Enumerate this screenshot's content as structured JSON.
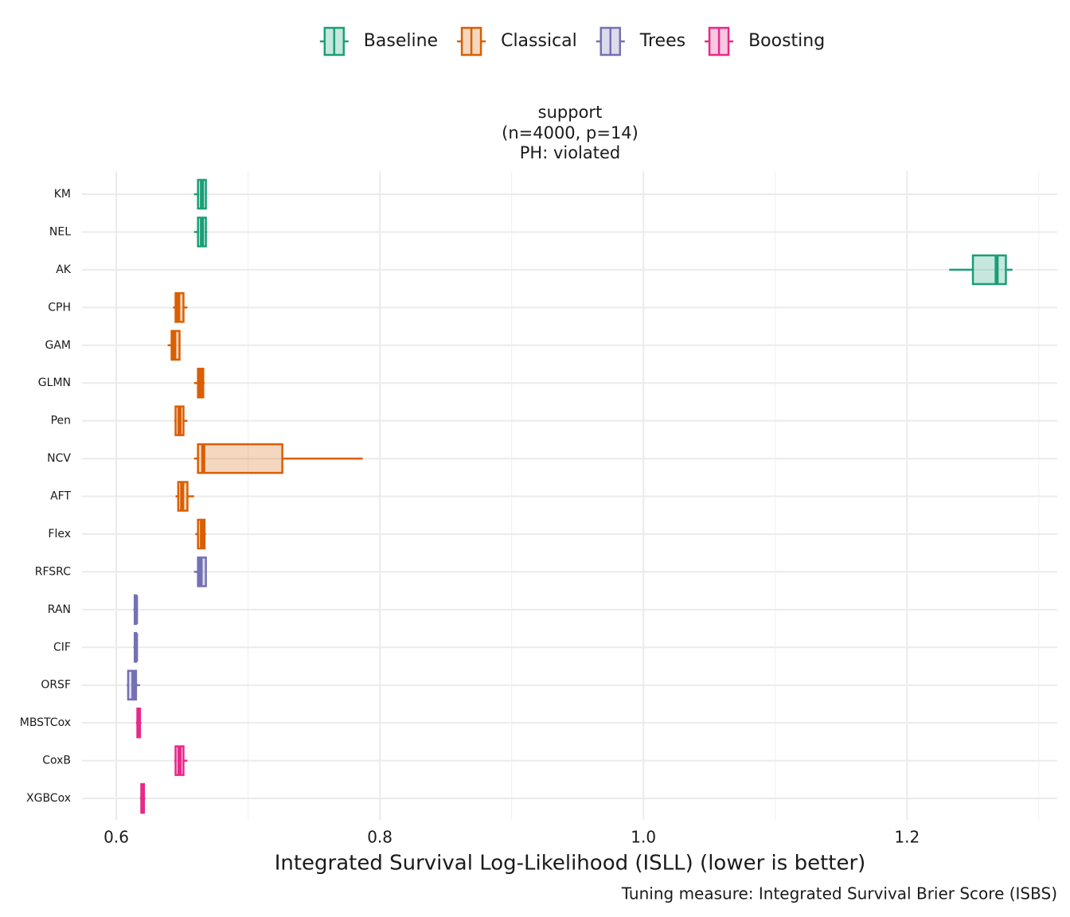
{
  "chart_data": {
    "type": "boxplot",
    "orientation": "horizontal",
    "title": [
      "support",
      "(n=4000, p=14)",
      "PH: violated"
    ],
    "x_label": "Integrated Survival Log-Likelihood (ISLL) (lower is better)",
    "caption": "Tuning measure: Integrated Survival Brier Score (ISBS)",
    "xlim": [
      0.574,
      1.314
    ],
    "xticks": [
      0.6,
      0.8,
      {
        "value": 1.0,
        "label": "1.0"
      },
      1.2
    ],
    "minor_xticks": [
      0.7,
      0.9,
      1.1,
      1.3
    ],
    "grid": true,
    "legend": "top",
    "series": [
      {
        "name": "Baseline",
        "color": "#1b9e77",
        "categories": [
          "KM",
          "NEL",
          "AK"
        ],
        "min": [
          0.659,
          0.659,
          1.232
        ],
        "q1": [
          0.662,
          0.662,
          1.25
        ],
        "median": [
          0.665,
          0.665,
          1.268
        ],
        "q3": [
          0.668,
          0.668,
          1.275
        ],
        "max": [
          0.668,
          0.669,
          1.28
        ]
      },
      {
        "name": "Classical",
        "color": "#d95f02",
        "categories": [
          "CPH",
          "GAM",
          "GLMN",
          "Pen",
          "NCV",
          "AFT",
          "Flex"
        ],
        "min": [
          0.643,
          0.639,
          0.659,
          0.644,
          0.659,
          0.645,
          0.66
        ],
        "q1": [
          0.645,
          0.642,
          0.662,
          0.645,
          0.662,
          0.647,
          0.662
        ],
        "median": [
          0.647,
          0.644,
          0.664,
          0.648,
          0.666,
          0.65,
          0.665
        ],
        "q3": [
          0.651,
          0.648,
          0.666,
          0.651,
          0.726,
          0.654,
          0.667
        ],
        "max": [
          0.654,
          0.648,
          0.667,
          0.654,
          0.787,
          0.659,
          0.668
        ]
      },
      {
        "name": "Trees",
        "color": "#7570b3",
        "categories": [
          "RFSRC",
          "RAN",
          "CIF",
          "ORSF"
        ],
        "min": [
          0.659,
          0.613,
          0.613,
          0.608
        ],
        "q1": [
          0.662,
          0.614,
          0.614,
          0.609
        ],
        "median": [
          0.664,
          0.615,
          0.615,
          0.613
        ],
        "q3": [
          0.668,
          0.615,
          0.615,
          0.615
        ],
        "max": [
          0.668,
          0.616,
          0.616,
          0.618
        ]
      },
      {
        "name": "Boosting",
        "color": "#e7298a",
        "categories": [
          "MBSTCox",
          "CoxB",
          "XGBCox"
        ],
        "min": [
          0.615,
          0.644,
          0.618
        ],
        "q1": [
          0.616,
          0.645,
          0.619
        ],
        "median": [
          0.617,
          0.648,
          0.62
        ],
        "q3": [
          0.618,
          0.651,
          0.621
        ],
        "max": [
          0.619,
          0.654,
          0.622
        ]
      }
    ]
  }
}
